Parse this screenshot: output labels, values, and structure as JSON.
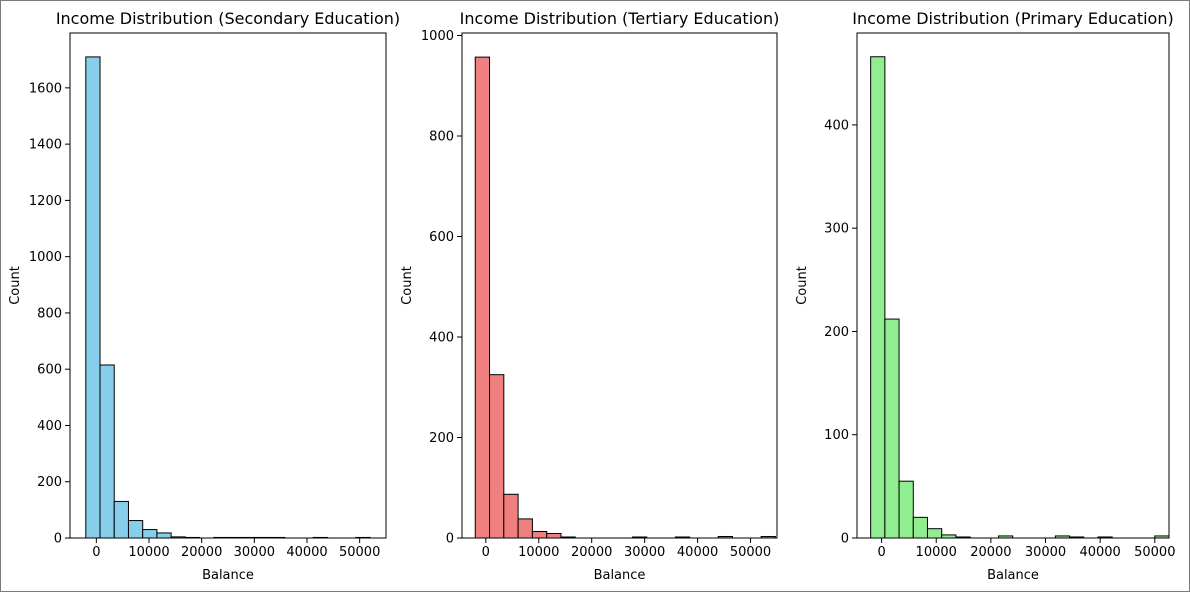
{
  "chart_data": [
    {
      "type": "bar",
      "title": "Income Distribution (Secondary Education)",
      "xlabel": "Balance",
      "ylabel": "Count",
      "bar_color": "#87ceeb",
      "edge_color": "#000000",
      "xlim": [
        -5000,
        55000
      ],
      "ylim": [
        0,
        1795
      ],
      "xticks": [
        0,
        10000,
        20000,
        30000,
        40000,
        50000
      ],
      "yticks": [
        0,
        200,
        400,
        600,
        800,
        1000,
        1200,
        1400,
        1600
      ],
      "bin_start": -2000,
      "bin_width": 2700,
      "values": [
        1710,
        615,
        130,
        62,
        30,
        18,
        4,
        2,
        0,
        2,
        2,
        2,
        2,
        2,
        0,
        0,
        2,
        0,
        0,
        2,
        0
      ]
    },
    {
      "type": "bar",
      "title": "Income Distribution (Tertiary Education)",
      "xlabel": "Balance",
      "ylabel": "Count",
      "bar_color": "#f08080",
      "edge_color": "#000000",
      "xlim": [
        -4500,
        55000
      ],
      "ylim": [
        0,
        1005
      ],
      "xticks": [
        0,
        10000,
        20000,
        30000,
        40000,
        50000
      ],
      "yticks": [
        0,
        200,
        400,
        600,
        800,
        1000
      ],
      "bin_start": -2000,
      "bin_width": 2700,
      "values": [
        957,
        325,
        87,
        38,
        13,
        9,
        2,
        0,
        0,
        0,
        0,
        2,
        0,
        0,
        2,
        0,
        0,
        3,
        0,
        0,
        3
      ]
    },
    {
      "type": "bar",
      "title": "Income Distribution (Primary Education)",
      "xlabel": "Balance",
      "ylabel": "Count",
      "bar_color": "#90ee90",
      "edge_color": "#000000",
      "xlim": [
        -4500,
        52600
      ],
      "ylim": [
        0,
        489
      ],
      "xticks": [
        0,
        10000,
        20000,
        30000,
        40000,
        50000
      ],
      "yticks": [
        0,
        100,
        200,
        300,
        400
      ],
      "bin_start": -2000,
      "bin_width": 2600,
      "values": [
        466,
        212,
        55,
        20,
        9,
        3,
        1,
        0,
        0,
        2,
        0,
        0,
        0,
        2,
        1,
        0,
        1,
        0,
        0,
        0,
        2
      ]
    }
  ]
}
